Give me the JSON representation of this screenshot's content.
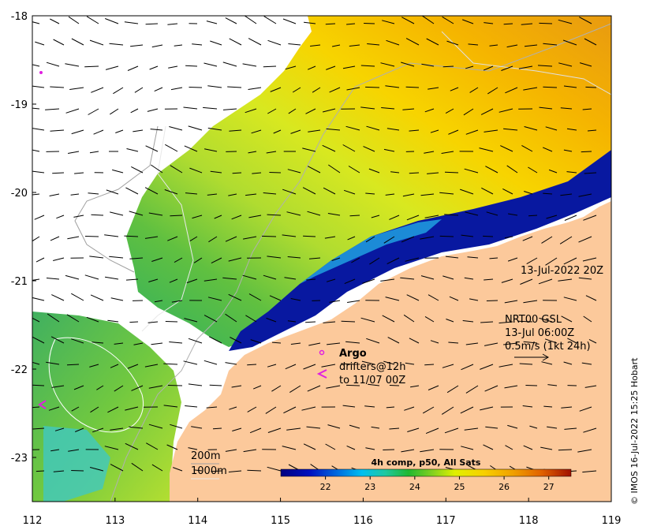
{
  "map": {
    "lon_ticks": [
      "112",
      "113",
      "114",
      "115",
      "116",
      "117",
      "118",
      "119"
    ],
    "lat_ticks": [
      "-18",
      "-19",
      "-20",
      "-21",
      "-22",
      "-23"
    ],
    "lon_range": [
      112,
      119
    ],
    "lat_range": [
      -23.5,
      -18
    ]
  },
  "annotations": {
    "timestamp": "13-Jul-2022 20Z",
    "current_source": "NRT00 GSL",
    "current_time": "13-Jul 06:00Z",
    "current_scale": "0.5m/s (1kt 24h)",
    "argo_label": "Argo",
    "drifters_line1": "drifters@12h",
    "drifters_line2": "to 11/07 00Z",
    "contour_200": "200m",
    "contour_1000": "1000m"
  },
  "colorbar": {
    "title": "4h comp, p50, All Sats",
    "ticks": [
      "22",
      "23",
      "24",
      "25",
      "26",
      "27"
    ],
    "range": [
      21,
      27.5
    ]
  },
  "credit": "© IMOS 16-Jul-2022 15:25 Hobart",
  "colors": {
    "land": "#fcc99b",
    "nodata": "#ffffff",
    "argo": "#e020e0"
  }
}
